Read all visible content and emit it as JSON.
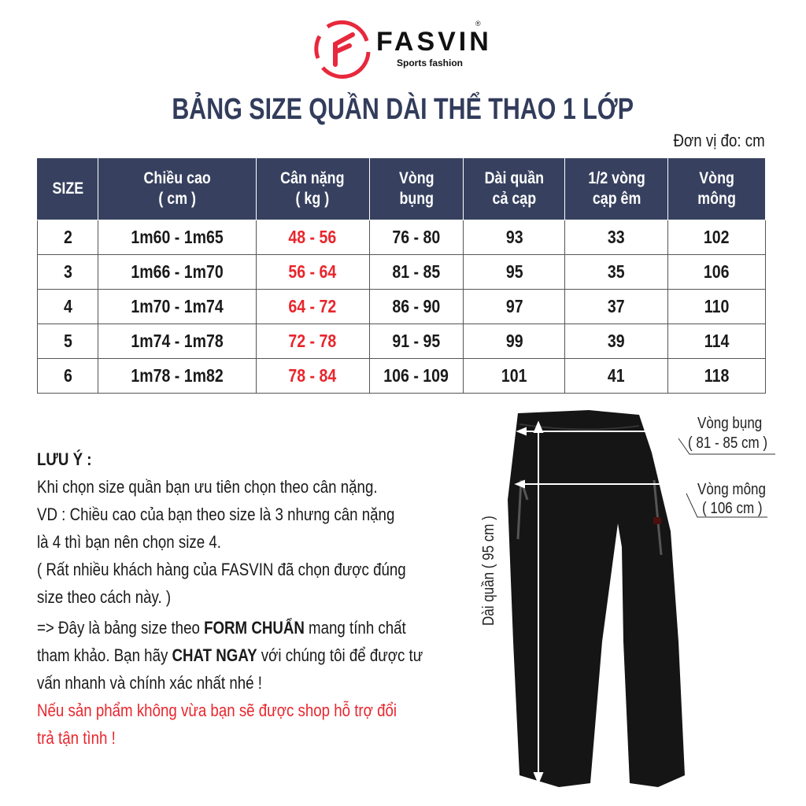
{
  "brand": {
    "name": "FASVIN",
    "tagline": "Sports fashion",
    "registered": "®",
    "color": "#e8283c"
  },
  "title": "BẢNG SIZE QUẦN DÀI THỂ THAO 1 LỚP",
  "unit": "Đơn vị đo: cm",
  "table": {
    "header_color": "#37415f",
    "headers": [
      "SIZE",
      "Chiều cao\n( cm )",
      "Cân nặng\n( kg )",
      "Vòng\nbụng",
      "Dài quần\ncả cạp",
      "1/2 vòng\ncạp êm",
      "Vòng\nmông"
    ],
    "rows": [
      [
        "2",
        "1m60 - 1m65",
        "48 - 56",
        "76 - 80",
        "93",
        "33",
        "102"
      ],
      [
        "3",
        "1m66 - 1m70",
        "56 - 64",
        "81 - 85",
        "95",
        "35",
        "106"
      ],
      [
        "4",
        "1m70 - 1m74",
        "64 - 72",
        "86 - 90",
        "97",
        "37",
        "110"
      ],
      [
        "5",
        "1m74 - 1m78",
        "72 - 78",
        "91 - 95",
        "99",
        "39",
        "114"
      ],
      [
        "6",
        "1m78 - 1m82",
        "78 - 84",
        "106 - 109",
        "101",
        "41",
        "118"
      ]
    ]
  },
  "notes": {
    "heading": "LƯU Ý :",
    "lines": [
      "Khi chọn size quần bạn ưu tiên chọn theo cân nặng.",
      "VD : Chiều cao của bạn theo size là 3 nhưng cân nặng",
      "là 4 thì bạn nên chọn size 4.",
      "( Rất nhiều khách hàng của FASVIN đã chọn được đúng",
      "size theo cách này. )"
    ],
    "p2_a": "=> Đây là bảng size theo ",
    "p2_b": "FORM CHUẨN",
    "p2_c": "  mang tính chất",
    "p3_a": "tham khảo. Bạn hãy ",
    "p3_b": "CHAT NGAY",
    "p3_c": " với chúng tôi để được tư",
    "p4": "vấn nhanh và chính xác nhất nhé !",
    "red1": "Nếu sản phẩm không vừa bạn sẽ được shop hỗ trợ đổi",
    "red2": "trả tận tình !",
    "red_color": "#e8262d"
  },
  "diagram": {
    "waist_label": "Vòng bụng",
    "waist_value": "( 81 - 85 cm )",
    "hip_label": "Vòng mông",
    "hip_value": "( 106 cm )",
    "length_label": "Dài quần ( 95 cm )"
  }
}
